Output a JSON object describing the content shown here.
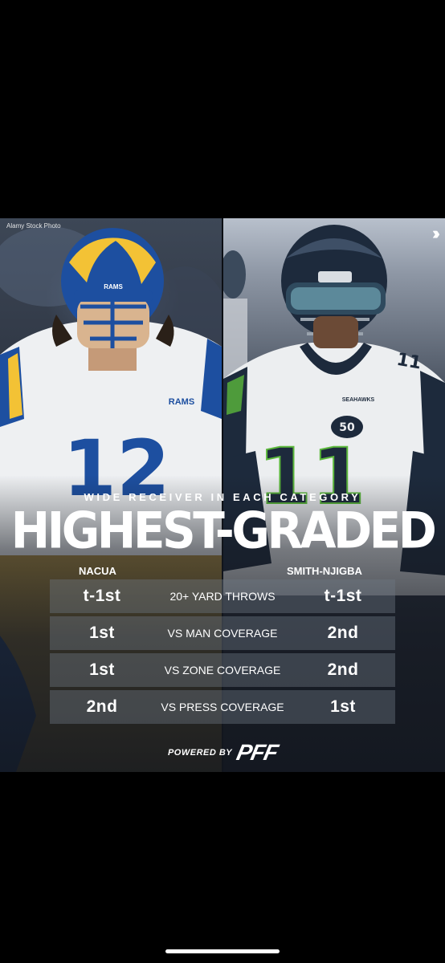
{
  "credit": "Alamy Stock Photo",
  "subhead": "WIDE RECEIVER IN EACH CATEGORY",
  "headline": "HIGHEST-GRADED",
  "players": {
    "left": "NACUA",
    "right": "SMITH-NJIGBA"
  },
  "rows": [
    {
      "left": "t-1st",
      "category": "20+ YARD THROWS",
      "right": "t-1st"
    },
    {
      "left": "1st",
      "category": "VS MAN COVERAGE",
      "right": "2nd"
    },
    {
      "left": "1st",
      "category": "VS ZONE COVERAGE",
      "right": "2nd"
    },
    {
      "left": "2nd",
      "category": "VS PRESS COVERAGE",
      "right": "1st"
    }
  ],
  "powered_by": "POWERED BY",
  "logo_text": "PFF",
  "jersey_left": {
    "number": "12",
    "team": "RAMS"
  },
  "jersey_right": {
    "number": "11",
    "team": "SEAHAWKS"
  },
  "colors": {
    "rams_blue": "#1d4fa0",
    "rams_yellow": "#f3c235",
    "seahawks_navy": "#1d2a3c",
    "seahawks_green": "#5bb83b"
  },
  "icons": {
    "chevrons": "triple-chevron-right-icon",
    "helmet_left": "rams-helmet-icon",
    "helmet_right": "seahawks-helmet-icon"
  }
}
